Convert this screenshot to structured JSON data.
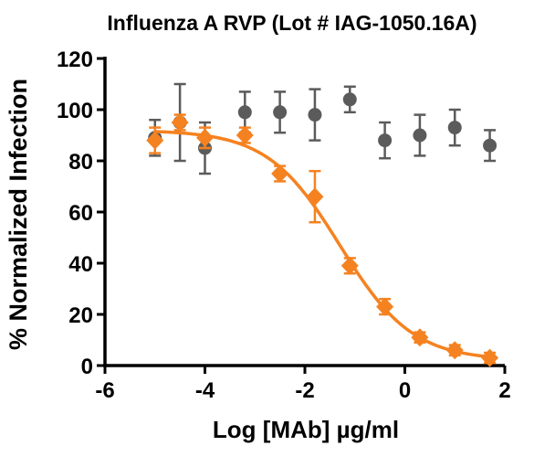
{
  "chart_data": {
    "type": "scatter",
    "title": "Influenza A RVP (Lot # IAG-1050.16A)",
    "xlabel": "Log [MAb] µg/ml",
    "ylabel": "% Normalized Infection",
    "xlim": [
      -6,
      2
    ],
    "ylim": [
      0,
      120
    ],
    "xticks": [
      -6,
      -4,
      -2,
      0,
      2
    ],
    "yticks": [
      0,
      20,
      40,
      60,
      80,
      100,
      120
    ],
    "grid": false,
    "legend": "none",
    "series": [
      {
        "name": "gray-circle-series",
        "marker": "circle",
        "color": "#5B5B5B",
        "x": [
          -5,
          -4.5,
          -4,
          -3.2,
          -2.5,
          -1.8,
          -1.1,
          -0.4,
          0.3,
          1,
          1.7
        ],
        "y": [
          89,
          95,
          85,
          99,
          99,
          98,
          104,
          88,
          90,
          93,
          86
        ],
        "yerr": [
          7,
          15,
          10,
          8,
          8,
          10,
          5,
          7,
          8,
          7,
          6
        ]
      },
      {
        "name": "orange-diamond-series",
        "marker": "diamond",
        "color": "#F58220",
        "x": [
          -5,
          -4.5,
          -4,
          -3.2,
          -2.5,
          -1.8,
          -1.1,
          -0.4,
          0.3,
          1,
          1.7
        ],
        "y": [
          88,
          95,
          89,
          90,
          75,
          66,
          39,
          23,
          11,
          6,
          3
        ],
        "yerr": [
          5,
          3,
          4,
          3,
          3,
          10,
          3,
          3,
          2,
          2,
          2
        ],
        "fit": {
          "type": "4PL",
          "top": 92,
          "bottom": 2,
          "logIC50": -1.3,
          "hill": 0.6,
          "x_start": -5,
          "x_end": 1.72
        }
      }
    ]
  }
}
